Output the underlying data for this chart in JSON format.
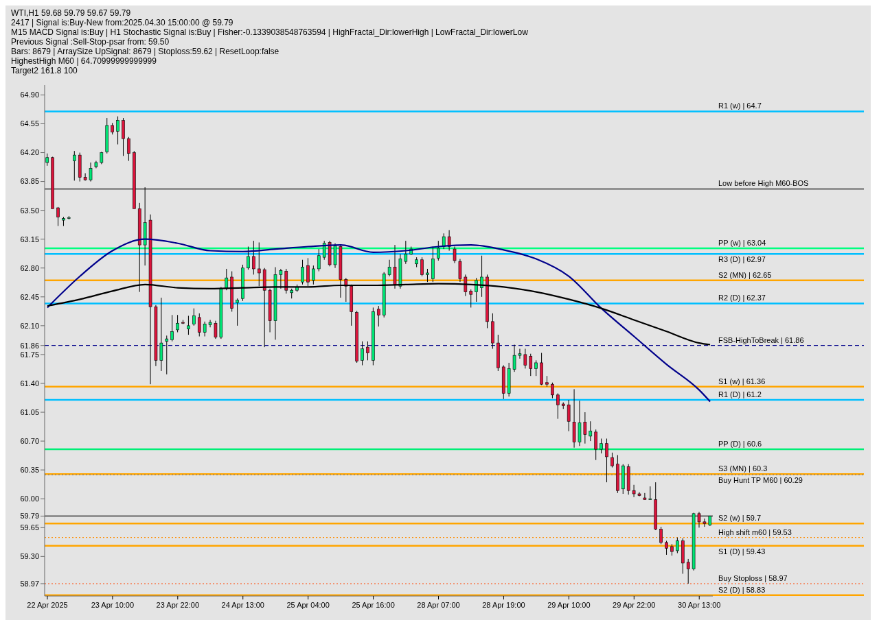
{
  "chart_data": {
    "type": "candlestick",
    "title": "WTI,H1  59.68 59.79 59.67 59.79",
    "annotations": [
      "2417 | Signal is:Buy-New from:2025.04.30 15:00:00 @ 59.79",
      "M15 MACD Signal is:Buy | H1 Stochastic Signal is:Buy | Fisher:-0.1339038548763594 | HighFractal_Dir:lowerHigh | LowFractal_Dir:lowerLow",
      "Previous Signal :Sell-Stop-psar from: 59.50",
      "Bars: 8679 | ArraySize UpSignal: 8679 | Stoploss:59.62 | ResetLoop:false",
      "HighestHigh   M60 | 64.70999999999999",
      "Target2   161.8   100"
    ],
    "categories": [
      "22 Apr 2025",
      null,
      null,
      null,
      null,
      null,
      null,
      null,
      null,
      null,
      null,
      null,
      "23 Apr 10:00",
      null,
      null,
      null,
      null,
      null,
      null,
      null,
      null,
      null,
      null,
      null,
      "23 Apr 22:00",
      null,
      null,
      null,
      null,
      null,
      null,
      null,
      null,
      null,
      null,
      null,
      "24 Apr 13:00",
      null,
      null,
      null,
      null,
      null,
      null,
      null,
      null,
      null,
      null,
      null,
      "25 Apr 04:00",
      null,
      null,
      null,
      null,
      null,
      null,
      null,
      null,
      null,
      null,
      null,
      "25 Apr 16:00",
      null,
      null,
      null,
      null,
      null,
      null,
      null,
      null,
      null,
      null,
      null,
      "28 Apr 07:00",
      null,
      null,
      null,
      null,
      null,
      null,
      null,
      null,
      null,
      null,
      null,
      "28 Apr 19:00",
      null,
      null,
      null,
      null,
      null,
      null,
      null,
      null,
      null,
      null,
      null,
      "29 Apr 10:00",
      null,
      null,
      null,
      null,
      null,
      null,
      null,
      null,
      null,
      null,
      null,
      "29 Apr 22:00",
      null,
      null,
      null,
      null,
      null,
      null,
      null,
      null,
      null,
      null,
      null,
      "30 Apr 13:00",
      null,
      null
    ],
    "series": [
      {
        "type": "candlestick",
        "colors": [
          "#00e676",
          "#dc143c",
          "#dc143c",
          "#00e676",
          "#00e676",
          "#00e676",
          "#dc143c",
          "#dc143c",
          "#00e676",
          "#00e676",
          "#00e676",
          "#00e676",
          "#dc143c",
          "#00e676",
          "#dc143c",
          "#dc143c",
          "#dc143c",
          "#dc143c",
          "#00e676",
          "#dc143c",
          "#dc143c",
          "#00e676",
          "#00e676",
          "#00e676",
          "#00e676",
          "#dc143c",
          "#00e676",
          "#00e676",
          "#dc143c",
          "#00e676",
          "#00e676",
          "#dc143c",
          "#00e676",
          "#00e676",
          "#dc143c",
          "#00e676",
          "#00e676",
          "#00e676",
          "#dc143c",
          "#dc143c",
          "#dc143c",
          "#dc143c",
          "#00e676",
          "#00e676",
          "#dc143c",
          "#00e676",
          "#00e676",
          "#00e676",
          "#dc143c",
          "#00e676",
          "#00e676",
          "#00e676",
          "#dc143c",
          "#00e676",
          "#dc143c",
          "#dc143c",
          "#dc143c",
          "#dc143c",
          "#00e676",
          "#dc143c",
          "#00e676",
          "#dc143c",
          "#00e676",
          "#00e676",
          "#dc143c",
          "#00e676",
          "#00e676",
          "#00e676",
          "#00e676",
          "#dc143c",
          "#00e676",
          "#00e676",
          "#00e676",
          "#00e676",
          "#dc143c",
          "#dc143c",
          "#dc143c",
          "#dc143c",
          "#dc143c",
          "#00e676",
          "#00e676",
          "#dc143c",
          "#dc143c",
          "#dc143c",
          "#dc143c",
          "#00e676",
          "#00e676",
          "#00e676",
          "#dc143c",
          "#dc143c",
          "#00e676",
          "#dc143c",
          "#dc143c",
          "#dc143c",
          "#dc143c",
          "#dc143c",
          "#dc143c",
          "#dc143c",
          "#00e676",
          "#dc143c",
          "#00e676",
          "#dc143c",
          "#00e676",
          "#dc143c",
          "#dc143c",
          "#dc143c",
          "#00e676",
          "#dc143c",
          "#dc143c",
          "#dc143c",
          "#dc143c",
          "#00e676",
          "#dc143c",
          "#dc143c",
          "#dc143c",
          "#dc143c",
          "#00e676",
          "#dc143c",
          "#dc143c",
          "#00e676",
          "#dc143c",
          "#dc143c",
          "#00e676"
        ],
        "ohlc": [
          [
            64.08,
            64.19,
            64.04,
            64.14
          ],
          [
            64.14,
            64.15,
            63.52,
            63.52
          ],
          [
            63.53,
            63.54,
            63.31,
            63.42
          ],
          [
            63.38,
            63.42,
            63.31,
            63.4
          ],
          [
            63.41,
            63.43,
            63.39,
            63.41
          ],
          [
            64.1,
            64.22,
            63.86,
            64.17
          ],
          [
            64.17,
            64.2,
            63.85,
            63.9
          ],
          [
            63.9,
            63.95,
            63.86,
            63.87
          ],
          [
            63.87,
            64.08,
            63.85,
            64.01
          ],
          [
            64.03,
            64.1,
            64.01,
            64.08
          ],
          [
            64.08,
            64.21,
            64.06,
            64.2
          ],
          [
            64.21,
            64.62,
            64.19,
            64.53
          ],
          [
            64.53,
            64.56,
            64.42,
            64.45
          ],
          [
            64.46,
            64.64,
            64.3,
            64.59
          ],
          [
            64.59,
            64.62,
            64.16,
            64.37
          ],
          [
            64.37,
            64.39,
            64.1,
            64.19
          ],
          [
            64.2,
            64.22,
            63.52,
            63.52
          ],
          [
            63.52,
            63.59,
            62.51,
            63.08
          ],
          [
            63.08,
            63.78,
            62.83,
            63.35
          ],
          [
            63.38,
            63.45,
            61.39,
            62.33
          ],
          [
            62.33,
            62.35,
            61.61,
            61.68
          ],
          [
            61.68,
            62.44,
            61.55,
            61.89
          ],
          [
            61.91,
            61.98,
            61.51,
            61.94
          ],
          [
            61.93,
            62.23,
            61.91,
            62.03
          ],
          [
            62.05,
            62.23,
            62.02,
            62.13
          ],
          [
            62.14,
            62.17,
            62.12,
            62.13
          ],
          [
            62.06,
            62.22,
            61.99,
            62.1
          ],
          [
            62.12,
            62.31,
            62.1,
            62.22
          ],
          [
            62.2,
            62.25,
            61.97,
            62.02
          ],
          [
            62.02,
            62.15,
            61.97,
            62.12
          ],
          [
            62.11,
            62.17,
            62.08,
            62.14
          ],
          [
            62.13,
            62.16,
            61.94,
            61.96
          ],
          [
            61.96,
            62.57,
            61.94,
            62.55
          ],
          [
            62.55,
            62.79,
            62.53,
            62.68
          ],
          [
            62.69,
            62.76,
            62.27,
            62.31
          ],
          [
            62.38,
            62.43,
            62.1,
            62.41
          ],
          [
            62.43,
            62.84,
            62.4,
            62.8
          ],
          [
            62.8,
            63.06,
            62.78,
            62.94
          ],
          [
            62.94,
            63.13,
            62.72,
            62.79
          ],
          [
            62.79,
            63.11,
            62.58,
            62.74
          ],
          [
            62.78,
            62.8,
            61.84,
            62.53
          ],
          [
            62.53,
            62.55,
            62.02,
            62.16
          ],
          [
            62.16,
            62.81,
            61.93,
            62.72
          ],
          [
            62.72,
            62.79,
            62.55,
            62.77
          ],
          [
            62.76,
            62.79,
            62.49,
            62.53
          ],
          [
            62.5,
            62.55,
            62.43,
            62.53
          ],
          [
            62.53,
            62.6,
            62.51,
            62.57
          ],
          [
            62.63,
            62.9,
            62.6,
            62.81
          ],
          [
            62.83,
            62.92,
            62.58,
            62.63
          ],
          [
            62.65,
            62.83,
            62.6,
            62.79
          ],
          [
            62.79,
            63.03,
            62.76,
            62.95
          ],
          [
            62.93,
            63.13,
            62.9,
            63.1
          ],
          [
            63.11,
            63.13,
            62.82,
            62.84
          ],
          [
            62.84,
            63.1,
            62.8,
            63.07
          ],
          [
            63.06,
            63.08,
            62.44,
            62.66
          ],
          [
            62.66,
            62.68,
            62.39,
            62.58
          ],
          [
            62.58,
            62.6,
            62.1,
            62.27
          ],
          [
            62.26,
            62.28,
            61.65,
            61.67
          ],
          [
            61.68,
            61.91,
            61.62,
            61.82
          ],
          [
            61.84,
            61.91,
            61.68,
            61.77
          ],
          [
            61.68,
            62.32,
            61.62,
            62.27
          ],
          [
            62.3,
            62.34,
            62.09,
            62.23
          ],
          [
            62.23,
            62.75,
            62.2,
            62.73
          ],
          [
            62.72,
            62.9,
            62.7,
            62.81
          ],
          [
            62.81,
            63.08,
            62.55,
            62.6
          ],
          [
            62.58,
            62.97,
            62.55,
            62.91
          ],
          [
            62.88,
            63.13,
            62.85,
            62.97
          ],
          [
            62.97,
            63.06,
            62.96,
            63.03
          ],
          [
            62.85,
            62.93,
            62.81,
            62.9
          ],
          [
            62.9,
            62.93,
            62.7,
            62.72
          ],
          [
            62.72,
            62.79,
            62.63,
            62.74
          ],
          [
            62.67,
            63.06,
            62.63,
            62.91
          ],
          [
            62.92,
            63.13,
            62.89,
            63.04
          ],
          [
            63.06,
            63.22,
            63.03,
            63.18
          ],
          [
            63.18,
            63.26,
            63.01,
            63.06
          ],
          [
            63.03,
            63.06,
            62.86,
            62.89
          ],
          [
            62.88,
            62.91,
            62.63,
            62.67
          ],
          [
            62.69,
            62.72,
            62.46,
            62.51
          ],
          [
            62.52,
            62.54,
            62.32,
            62.48
          ],
          [
            62.51,
            62.68,
            62.39,
            62.65
          ],
          [
            62.56,
            62.95,
            62.45,
            62.69
          ],
          [
            62.69,
            62.72,
            62.07,
            62.15
          ],
          [
            62.15,
            62.25,
            61.82,
            61.89
          ],
          [
            61.89,
            61.99,
            61.55,
            61.59
          ],
          [
            61.6,
            61.62,
            61.21,
            61.28
          ],
          [
            61.28,
            61.65,
            61.24,
            61.58
          ],
          [
            61.57,
            61.87,
            61.54,
            61.74
          ],
          [
            61.74,
            61.82,
            61.7,
            61.76
          ],
          [
            61.75,
            61.82,
            61.58,
            61.62
          ],
          [
            61.73,
            61.76,
            61.49,
            61.58
          ],
          [
            61.58,
            61.68,
            61.49,
            61.65
          ],
          [
            61.65,
            61.77,
            61.38,
            61.39
          ],
          [
            61.41,
            61.49,
            61.36,
            61.39
          ],
          [
            61.39,
            61.41,
            61.22,
            61.26
          ],
          [
            61.26,
            61.28,
            60.97,
            61.14
          ],
          [
            61.15,
            61.17,
            61.09,
            61.13
          ],
          [
            61.14,
            61.2,
            60.82,
            60.94
          ],
          [
            60.93,
            61.33,
            60.62,
            60.69
          ],
          [
            60.69,
            61.19,
            60.64,
            60.92
          ],
          [
            60.93,
            61.05,
            60.67,
            60.78
          ],
          [
            60.76,
            60.94,
            60.7,
            60.82
          ],
          [
            60.81,
            60.84,
            60.47,
            60.6
          ],
          [
            60.6,
            60.73,
            60.55,
            60.67
          ],
          [
            60.67,
            60.73,
            60.2,
            60.51
          ],
          [
            60.5,
            60.56,
            60.38,
            60.4
          ],
          [
            60.42,
            60.53,
            60.07,
            60.1
          ],
          [
            60.12,
            60.42,
            60.06,
            60.4
          ],
          [
            60.39,
            60.42,
            60.05,
            60.1
          ],
          [
            60.1,
            60.17,
            60.02,
            60.06
          ],
          [
            60.06,
            60.08,
            60.03,
            60.04
          ],
          [
            60.01,
            60.07,
            59.99,
            59.99
          ],
          [
            59.99,
            60.15,
            59.99,
            60.0
          ],
          [
            59.99,
            60.2,
            59.62,
            59.63
          ],
          [
            59.63,
            59.66,
            59.45,
            59.47
          ],
          [
            59.47,
            59.49,
            59.32,
            59.4
          ],
          [
            59.42,
            59.45,
            59.31,
            59.36
          ],
          [
            59.37,
            59.53,
            59.34,
            59.49
          ],
          [
            59.49,
            59.52,
            59.09,
            59.22
          ],
          [
            59.23,
            59.27,
            58.97,
            59.15
          ],
          [
            59.15,
            59.83,
            59.13,
            59.82
          ],
          [
            59.82,
            59.84,
            59.65,
            59.72
          ],
          [
            59.72,
            59.76,
            59.66,
            59.7
          ],
          [
            59.68,
            59.79,
            59.67,
            59.79
          ]
        ]
      },
      {
        "type": "line",
        "color": "#00008b",
        "values": [
          62.32,
          null,
          null,
          null,
          null,
          null,
          62.7,
          null,
          null,
          null,
          null,
          null,
          63.01,
          null,
          null,
          null,
          null,
          null,
          63.15,
          null,
          null,
          null,
          null,
          null,
          63.1,
          null,
          null,
          null,
          null,
          null,
          63.01,
          null,
          null,
          null,
          null,
          null,
          63.0,
          null,
          null,
          null,
          null,
          null,
          63.03,
          null,
          null,
          null,
          null,
          null,
          63.06,
          null,
          null,
          null,
          null,
          null,
          63.08,
          null,
          null,
          null,
          null,
          null,
          62.99,
          null,
          null,
          null,
          null,
          null,
          63.01,
          null,
          null,
          null,
          null,
          null,
          63.06,
          null,
          null,
          null,
          null,
          null,
          63.08,
          null,
          null,
          null,
          null,
          null,
          63.02,
          null,
          null,
          null,
          null,
          null,
          62.91,
          null,
          null,
          null,
          null,
          null,
          62.7,
          null,
          null,
          null,
          null,
          null,
          62.31,
          null,
          null,
          null,
          null,
          null,
          61.97,
          null,
          null,
          null,
          null,
          null,
          61.63,
          null,
          null,
          null,
          null,
          null,
          61.32,
          null,
          61.18
        ]
      },
      {
        "type": "line",
        "color": "#000000",
        "values": [
          62.34,
          null,
          null,
          null,
          null,
          null,
          62.42,
          null,
          null,
          null,
          null,
          null,
          62.52,
          null,
          null,
          null,
          null,
          null,
          62.6,
          null,
          null,
          null,
          null,
          null,
          62.56,
          null,
          null,
          null,
          null,
          null,
          62.55,
          null,
          null,
          null,
          null,
          null,
          62.56,
          null,
          null,
          null,
          null,
          null,
          62.57,
          null,
          null,
          null,
          null,
          null,
          62.57,
          null,
          null,
          null,
          null,
          null,
          62.59,
          null,
          null,
          null,
          null,
          null,
          62.59,
          null,
          null,
          null,
          null,
          null,
          62.6,
          null,
          null,
          null,
          null,
          null,
          62.61,
          null,
          null,
          null,
          null,
          null,
          62.6,
          null,
          null,
          null,
          null,
          null,
          62.57,
          null,
          null,
          null,
          null,
          null,
          62.51,
          null,
          null,
          null,
          null,
          null,
          62.42,
          null,
          null,
          null,
          null,
          null,
          62.31,
          null,
          null,
          null,
          null,
          null,
          62.17,
          null,
          null,
          null,
          null,
          null,
          62.03,
          null,
          null,
          null,
          null,
          null,
          61.89,
          null,
          61.87
        ]
      }
    ],
    "ylim": [
      58.82,
      65.02
    ],
    "yticks": [
      {
        "value": 58.97,
        "label": "58.97"
      },
      {
        "value": 59.3,
        "label": "59.30"
      },
      {
        "value": 59.65,
        "label": "59.65"
      },
      {
        "value": 59.79,
        "label": "59.79"
      },
      {
        "value": 60,
        "label": "60.00"
      },
      {
        "value": 60.35,
        "label": "60.35"
      },
      {
        "value": 60.7,
        "label": "60.70"
      },
      {
        "value": 61.05,
        "label": "61.05"
      },
      {
        "value": 61.4,
        "label": "61.40"
      },
      {
        "value": 61.75,
        "label": "61.75"
      },
      {
        "value": 61.86,
        "label": "61.86"
      },
      {
        "value": 62.1,
        "label": "62.10"
      },
      {
        "value": 62.45,
        "label": "62.45"
      },
      {
        "value": 62.8,
        "label": "62.80"
      },
      {
        "value": 63.15,
        "label": "63.15"
      },
      {
        "value": 63.5,
        "label": "63.50"
      },
      {
        "value": 63.85,
        "label": "63.85"
      },
      {
        "value": 64.2,
        "label": "64.20"
      },
      {
        "value": 64.55,
        "label": "64.55"
      },
      {
        "value": 64.9,
        "label": "64.90"
      }
    ],
    "ref_lines": [
      {
        "axis": "y",
        "value": 64.7,
        "label": "R1 (w) | 64.7",
        "color": "#00bfff"
      },
      {
        "axis": "y",
        "value": 63.76,
        "label": "Low before High   M60-BOS",
        "color": "#808080"
      },
      {
        "axis": "y",
        "value": 63.04,
        "label": "PP (w) | 63.04",
        "color": "#00ff7f"
      },
      {
        "axis": "y",
        "value": 62.97,
        "label": "R3 (D) | 62.97",
        "color": "#00bfff"
      },
      {
        "axis": "y",
        "value": 62.65,
        "label": "S2 (MN) | 62.65",
        "color": "#ffa500"
      },
      {
        "axis": "y",
        "value": 62.37,
        "label": "R2 (D) | 62.37",
        "color": "#00bfff"
      },
      {
        "axis": "y",
        "value": 61.86,
        "label": "FSB-HighToBreak | 61.86",
        "color": "#00008b",
        "line_style": "dashed"
      },
      {
        "axis": "y",
        "value": 61.36,
        "label": "S1 (w) | 61.36",
        "color": "#ffa500"
      },
      {
        "axis": "y",
        "value": 61.2,
        "label": "R1 (D) | 61.2",
        "color": "#00bfff"
      },
      {
        "axis": "y",
        "value": 60.6,
        "label": "PP (D) | 60.6",
        "color": "#00ee76"
      },
      {
        "axis": "y",
        "value": 60.3,
        "label": "S3 (MN) | 60.3",
        "color": "#ffa500"
      },
      {
        "axis": "y",
        "value": 60.29,
        "label": "Buy Hunt TP M60 | 60.29",
        "color": "#808080",
        "line_style": "dotted"
      },
      {
        "axis": "y",
        "value": 59.79,
        "color": "#808080"
      },
      {
        "axis": "y",
        "value": 59.7,
        "label": "S2 (w) | 59.7",
        "color": "#ffa500"
      },
      {
        "axis": "y",
        "value": 59.53,
        "label": "High shift m60 | 59.53",
        "color": "#ff8c00",
        "line_style": "dotted"
      },
      {
        "axis": "y",
        "value": 59.43,
        "label": "S1 (D) | 59.43",
        "color": "#ffa500"
      },
      {
        "axis": "y",
        "value": 58.97,
        "label": "Buy Stoploss | 58.97",
        "color": "#ff4500",
        "line_style": "dotted"
      },
      {
        "axis": "y",
        "value": 58.83,
        "label": "S2 (D) | 58.83",
        "color": "#ffa500"
      }
    ]
  }
}
